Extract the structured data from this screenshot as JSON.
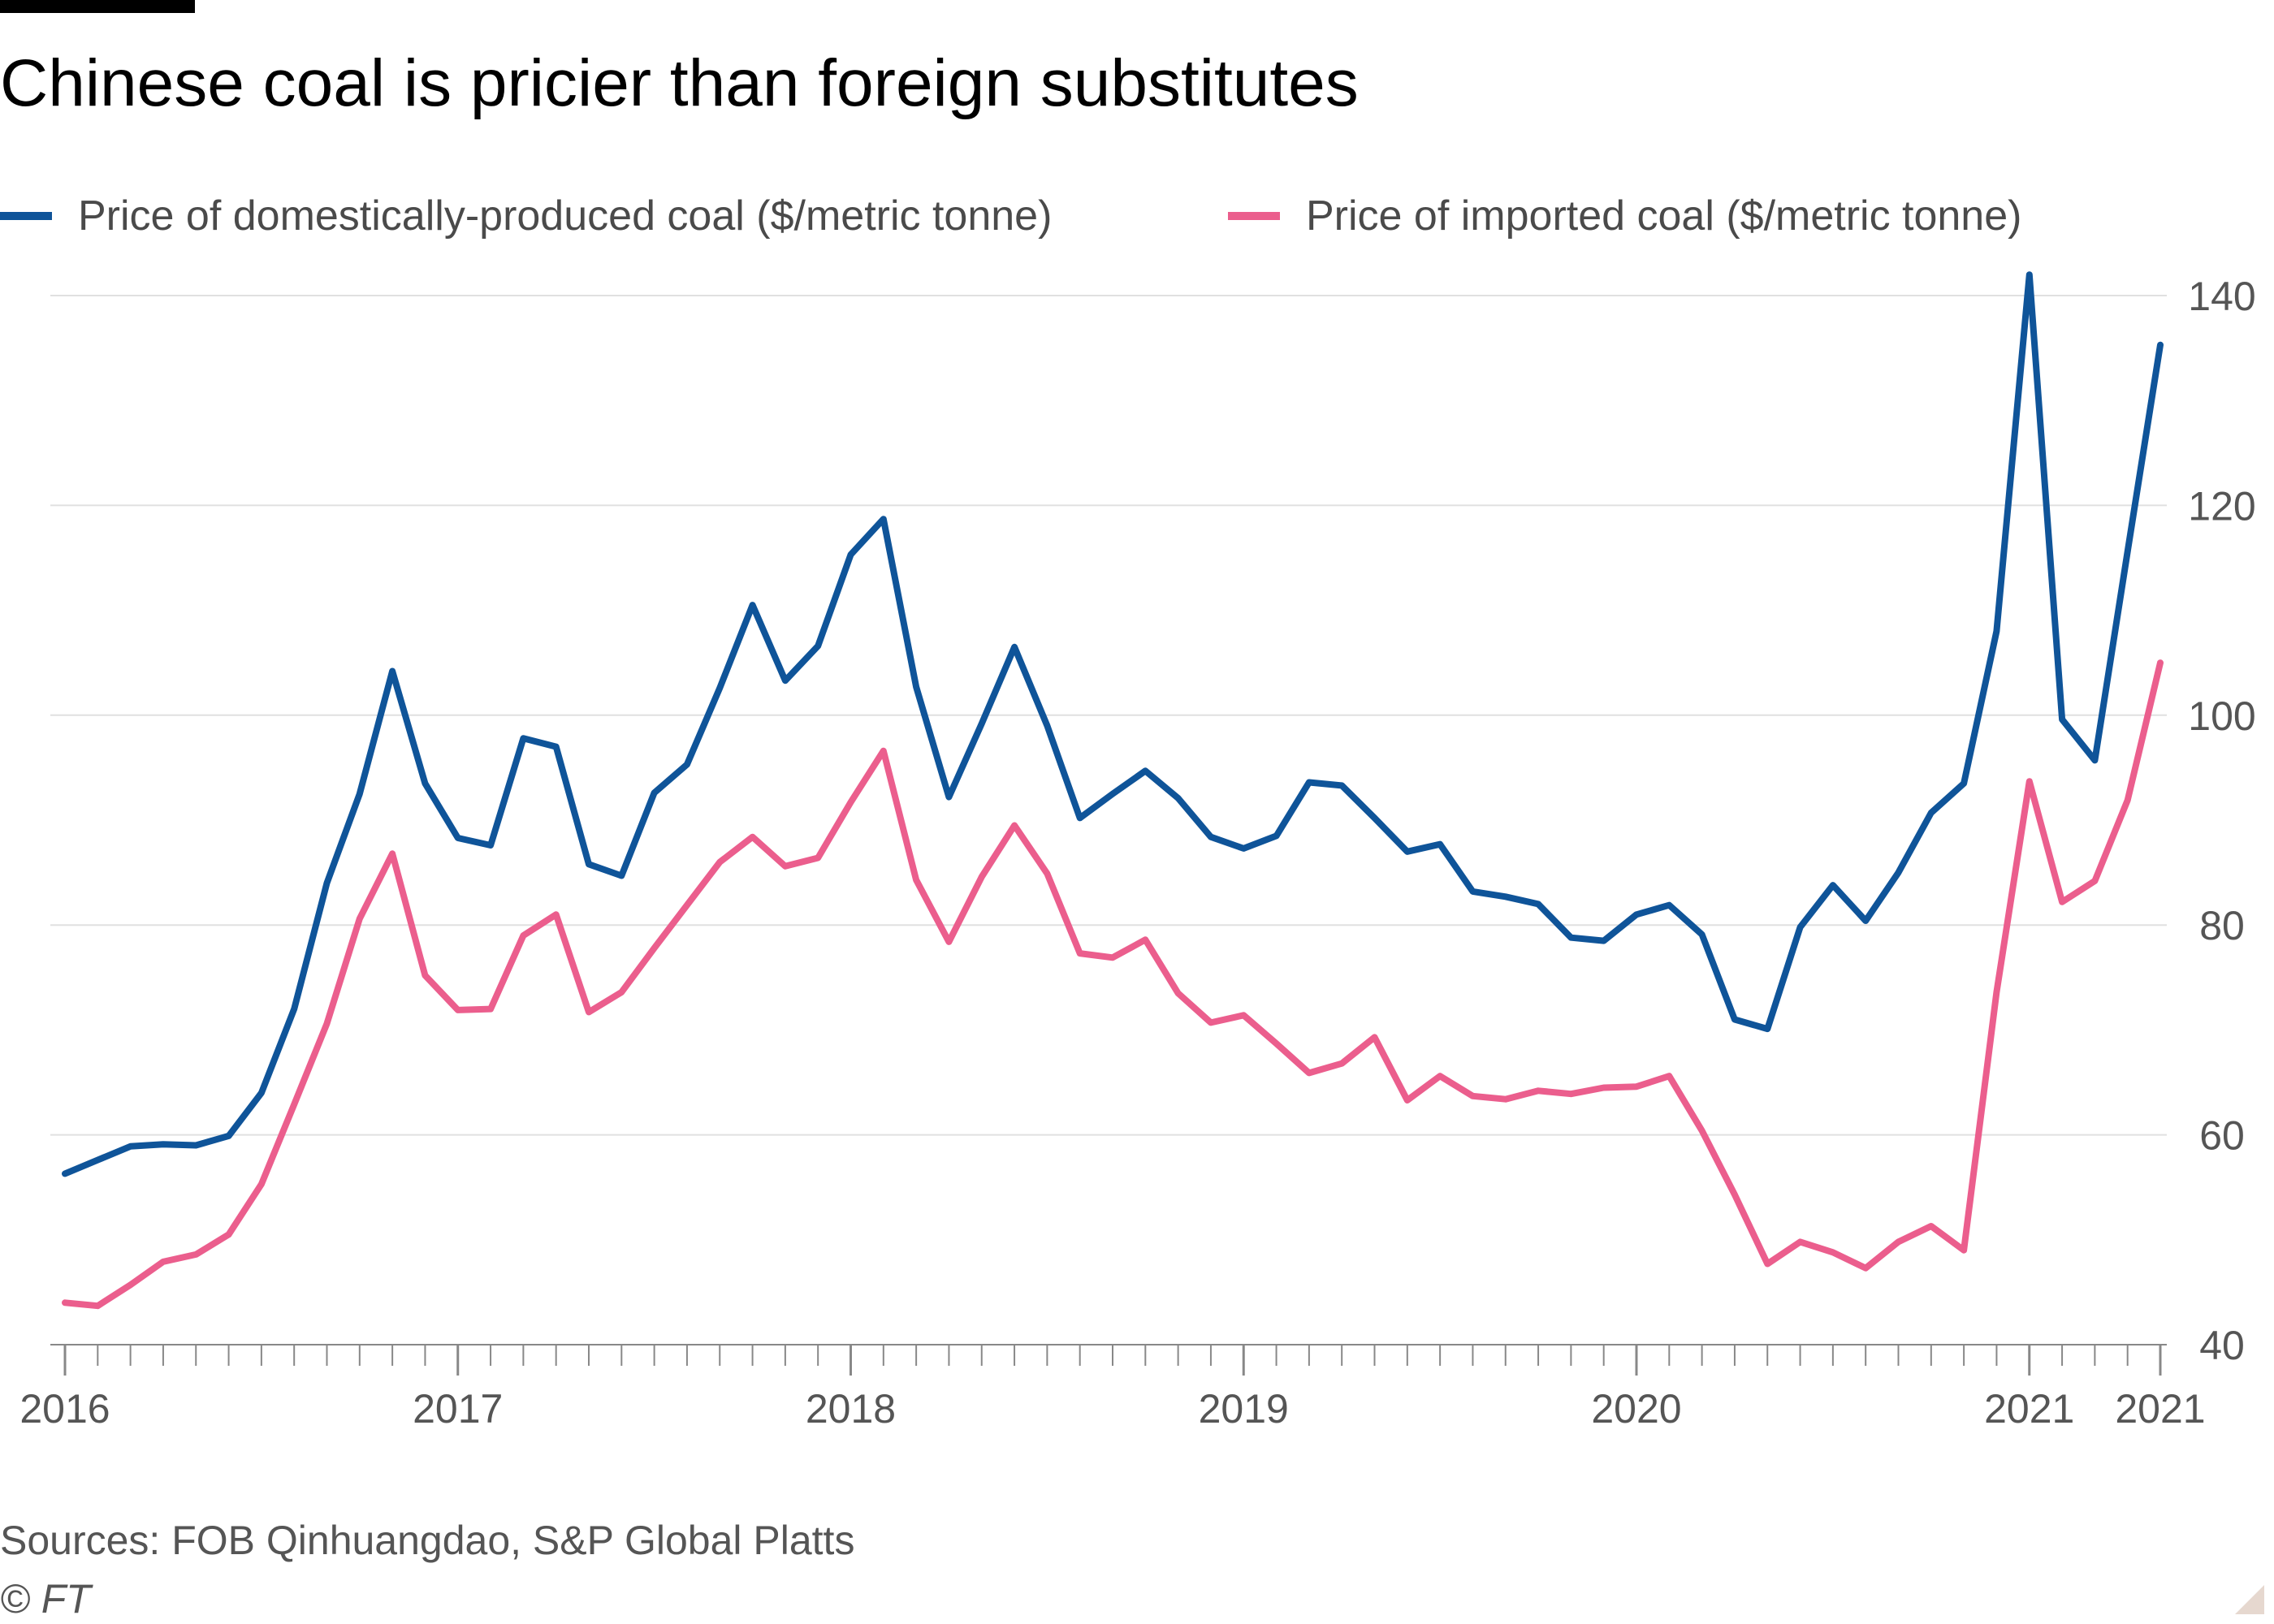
{
  "chart_data": {
    "type": "line",
    "title": "Chinese coal is pricier than foreign substitutes",
    "source": "Sources: FOB Qinhuangdao, S&P Global Platts",
    "credit": "© FT",
    "xlabel": "",
    "ylabel": "",
    "ylim": [
      40,
      140
    ],
    "yticks": [
      40,
      60,
      80,
      100,
      120,
      140
    ],
    "y_axis_position": "right",
    "grid": true,
    "legend_position": "top",
    "x": [
      "2016-01",
      "2016-02",
      "2016-03",
      "2016-04",
      "2016-05",
      "2016-06",
      "2016-07",
      "2016-08",
      "2016-09",
      "2016-10",
      "2016-11",
      "2016-12",
      "2017-01",
      "2017-02",
      "2017-03",
      "2017-04",
      "2017-05",
      "2017-06",
      "2017-07",
      "2017-08",
      "2017-09",
      "2017-10",
      "2017-11",
      "2017-12",
      "2018-01",
      "2018-02",
      "2018-03",
      "2018-04",
      "2018-05",
      "2018-06",
      "2018-07",
      "2018-08",
      "2018-09",
      "2018-10",
      "2018-11",
      "2018-12",
      "2019-01",
      "2019-02",
      "2019-03",
      "2019-04",
      "2019-05",
      "2019-06",
      "2019-07",
      "2019-08",
      "2019-09",
      "2019-10",
      "2019-11",
      "2019-12",
      "2020-01",
      "2020-02",
      "2020-03",
      "2020-04",
      "2020-05",
      "2020-06",
      "2020-07",
      "2020-08",
      "2020-09",
      "2020-10",
      "2020-11",
      "2020-12",
      "2021-01",
      "2021-02",
      "2021-03",
      "2021-04",
      "2021-05"
    ],
    "x_ticks": [
      {
        "at": "2016-01",
        "label": "2016"
      },
      {
        "at": "2017-01",
        "label": "2017"
      },
      {
        "at": "2018-01",
        "label": "2018"
      },
      {
        "at": "2019-01",
        "label": "2019"
      },
      {
        "at": "2020-01",
        "label": "2020"
      },
      {
        "at": "2021-01",
        "label": "2021"
      },
      {
        "at": "2021-05",
        "label": "2021"
      }
    ],
    "series": [
      {
        "name": "Price of domestically-produced coal ($/metric tonne)",
        "color": "#0f5499",
        "values": [
          56.3,
          57.6,
          58.9,
          59.1,
          59.0,
          59.9,
          64.0,
          72.0,
          84.0,
          92.5,
          104.2,
          93.5,
          88.3,
          87.6,
          97.8,
          97.0,
          85.8,
          84.7,
          92.6,
          95.3,
          102.6,
          110.5,
          103.3,
          106.6,
          115.3,
          118.7,
          102.7,
          92.2,
          99.2,
          106.5,
          99.0,
          90.2,
          92.5,
          94.7,
          92.1,
          88.4,
          87.3,
          88.5,
          93.6,
          93.3,
          90.2,
          87.0,
          87.7,
          83.2,
          82.7,
          82.0,
          78.8,
          78.5,
          81.0,
          81.9,
          79.1,
          71.0,
          70.1,
          79.8,
          83.8,
          80.4,
          85.0,
          90.7,
          93.5,
          108.0,
          142.0,
          99.6,
          95.7,
          115.6,
          135.3
        ]
      },
      {
        "name": "Price of imported coal ($/metric tonne)",
        "color": "#eb5e8d",
        "values": [
          44.0,
          43.7,
          45.7,
          47.9,
          48.6,
          50.5,
          55.3,
          62.9,
          70.6,
          80.6,
          86.8,
          75.2,
          71.9,
          72.0,
          79.0,
          81.0,
          71.7,
          73.6,
          77.8,
          81.9,
          86.0,
          88.4,
          85.6,
          86.4,
          91.7,
          96.6,
          84.3,
          78.4,
          84.6,
          89.5,
          84.9,
          77.3,
          76.9,
          78.6,
          73.5,
          70.7,
          71.4,
          68.7,
          65.9,
          66.8,
          69.3,
          63.3,
          65.6,
          63.7,
          63.4,
          64.2,
          63.9,
          64.5,
          64.6,
          65.6,
          60.4,
          54.3,
          47.7,
          49.8,
          48.8,
          47.3,
          49.8,
          51.3,
          49.0,
          73.6,
          93.7,
          82.2,
          84.2,
          91.9,
          105.0
        ]
      }
    ]
  }
}
